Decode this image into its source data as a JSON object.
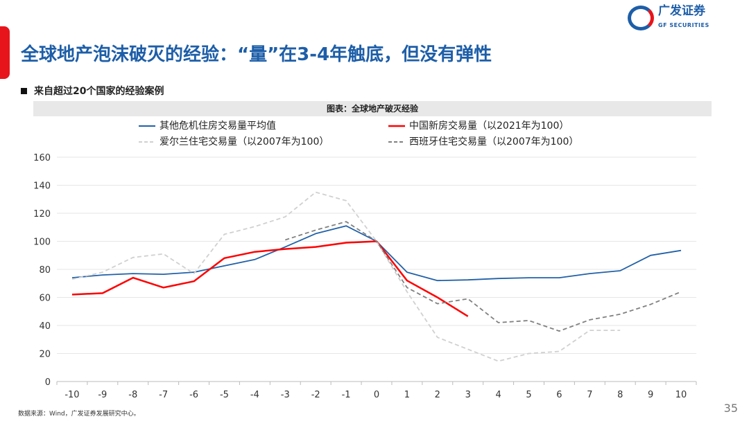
{
  "title": "全球地产泡沫破灭的经验：“量”在3-4年触底，但没有弹性",
  "logo": {
    "cn": "广发证券",
    "en": "GF SECURITIES"
  },
  "subtitle": "来自超过20个国家的经验案例",
  "chart_caption": "图表：全球地产破灭经验",
  "source": "数据来源：Wind，广发证券发展研究中心。",
  "page_number": "35",
  "chart_data": {
    "type": "line",
    "x": [
      -10,
      -9,
      -8,
      -7,
      -6,
      -5,
      -4,
      -3,
      -2,
      -1,
      0,
      1,
      2,
      3,
      4,
      5,
      6,
      7,
      8,
      9,
      10
    ],
    "ylim": [
      0,
      160
    ],
    "yticks": [
      0,
      20,
      40,
      60,
      80,
      100,
      120,
      140,
      160
    ],
    "grid": true,
    "legend": "top",
    "series": [
      {
        "name": "其他危机住房交易量平均值",
        "color": "#2060a8",
        "dash": "solid",
        "values": [
          74,
          76,
          77,
          76.5,
          78,
          82.5,
          87,
          96,
          105.5,
          111,
          100,
          78,
          72,
          72.5,
          73.5,
          74,
          74,
          77,
          79,
          90,
          93.5
        ]
      },
      {
        "name": "中国新房交易量（以2021年为100）",
        "color": "#ff0000",
        "dash": "solid",
        "values": [
          62,
          63,
          74,
          67,
          71.5,
          88,
          92.5,
          94.5,
          96,
          99,
          100,
          72,
          60,
          46.5,
          null,
          null,
          null,
          null,
          null,
          null,
          null
        ]
      },
      {
        "name": "爱尔兰住宅交易量（以2007年为100）",
        "color": "#d0d0d0",
        "dash": "dashed",
        "values": [
          73,
          78,
          88.5,
          91,
          77,
          105,
          110.5,
          117.5,
          135,
          129,
          100,
          64,
          31.5,
          23,
          14.5,
          20,
          21.5,
          36.5,
          36.5,
          null,
          null
        ]
      },
      {
        "name": "西班牙住宅交易量（以2007年为100）",
        "color": "#808080",
        "dash": "dashed",
        "values": [
          null,
          null,
          null,
          null,
          null,
          null,
          null,
          101,
          108,
          114,
          100,
          67,
          55.5,
          59,
          42,
          43.5,
          36,
          44,
          48,
          55,
          64
        ]
      }
    ]
  }
}
